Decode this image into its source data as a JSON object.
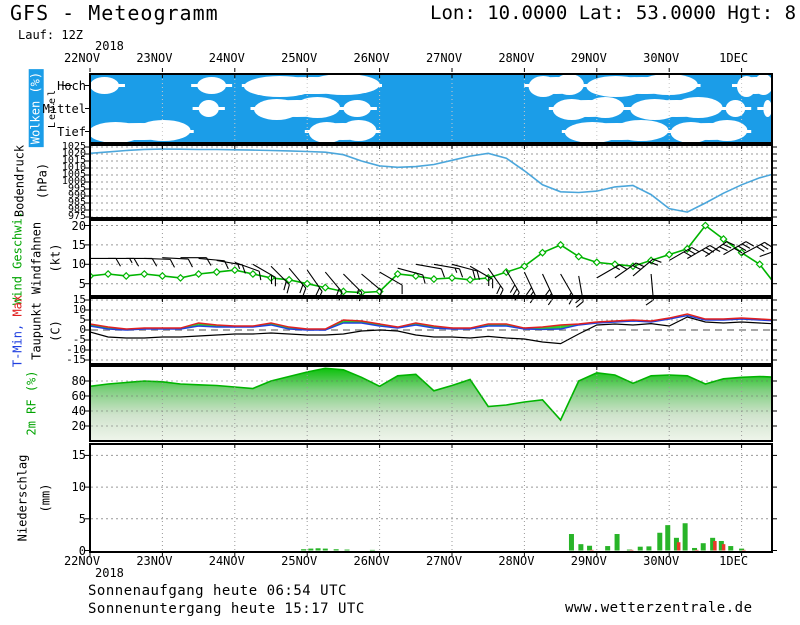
{
  "header": {
    "title": "GFS - Meteogramm",
    "coordinates": "Lon: 10.0000 Lat: 53.0000 Hgt: 8",
    "run_label": "Lauf: 12Z"
  },
  "footer": {
    "sunrise": "Sonnenaufgang heute 06:54 UTC",
    "sunset": "Sonnenuntergang heute 15:17 UTC",
    "website": "www.wetterzentrale.de"
  },
  "chart_data": {
    "type": "meteogram",
    "x_axis": {
      "year": "2018",
      "dates": [
        "22NOV",
        "23NOV",
        "24NOV",
        "25NOV",
        "26NOV",
        "27NOV",
        "28NOV",
        "29NOV",
        "30NOV",
        "1DEC"
      ],
      "step_days": 0.25,
      "days_shown": 9.42
    },
    "panels": {
      "clouds": {
        "label": "Wolken (%)",
        "axis_label": "Level",
        "rows": [
          "Hoch",
          "Mittel",
          "Tief"
        ],
        "sky_color": "#1B9DE8",
        "cloud_color": "#FFFFFF",
        "gridline_color": "#C8C8C8",
        "segments": {
          "Hoch": [
            [
              0,
              0.4
            ],
            [
              1.48,
              1.88
            ],
            [
              2.18,
              3.95
            ],
            [
              6.08,
              6.8
            ],
            [
              6.9,
              8.35
            ],
            [
              8.95,
              9.42
            ]
          ],
          "Mittel": [
            [
              1.5,
              1.78
            ],
            [
              2.3,
              3.42
            ],
            [
              3.5,
              3.88
            ],
            [
              6.42,
              7.35
            ],
            [
              7.5,
              8.7
            ],
            [
              8.78,
              9.05
            ],
            [
              9.3,
              9.42
            ]
          ],
          "Tief": [
            [
              0.02,
              1.35
            ],
            [
              3.05,
              3.93
            ],
            [
              6.6,
              7.95
            ],
            [
              8.05,
              9.05
            ]
          ]
        }
      },
      "pressure": {
        "label": "Bodendruck",
        "unit": "(hPa)",
        "line_color": "#4BA6DB",
        "ylim": [
          975,
          1025
        ],
        "yticks": [
          1025,
          1020,
          1015,
          1010,
          1005,
          1000,
          995,
          990,
          985,
          980,
          975
        ],
        "values": [
          1020.5,
          1021.5,
          1022.5,
          1023.3,
          1023.5,
          1023.4,
          1023.2,
          1023.2,
          1023.0,
          1022.8,
          1022.5,
          1022.2,
          1021.8,
          1021.3,
          1019.5,
          1015.0,
          1011.5,
          1010.5,
          1011.0,
          1012.5,
          1015.5,
          1018.5,
          1020.5,
          1017.0,
          1008.0,
          998.0,
          993.0,
          992.5,
          993.5,
          996.5,
          997.5,
          991.0,
          981.0,
          978.5,
          985.0,
          992.0,
          998.0,
          1003.0,
          1006.5
        ]
      },
      "wind": {
        "label_speed": "Wind Geschwi.",
        "label_barbs": "Windfahnen",
        "unit": "(kt)",
        "line_color": "#00B400",
        "barb_color": "#000000",
        "ylim": [
          2,
          21
        ],
        "yticks": [
          20,
          15,
          10,
          5
        ],
        "speed_kt": [
          7,
          7.5,
          7,
          7.5,
          7,
          6.5,
          7.5,
          8,
          8.5,
          7.5,
          6.5,
          6,
          5,
          4,
          3,
          2.7,
          3,
          7.5,
          7,
          6.2,
          6.5,
          6,
          6.5,
          8,
          9.5,
          13,
          15,
          12,
          10.5,
          10,
          9.5,
          11,
          12.5,
          14,
          20,
          16.5,
          13,
          10,
          4
        ],
        "barbs": [
          [
            0,
            11.5,
            0,
            1
          ],
          [
            0.25,
            11.5,
            0,
            1.5
          ],
          [
            0.5,
            11.5,
            0,
            1
          ],
          [
            0.75,
            11.5,
            -2,
            1
          ],
          [
            1,
            11.7,
            -3,
            1
          ],
          [
            1.25,
            11.7,
            0,
            1
          ],
          [
            1.5,
            11.5,
            -5,
            1
          ],
          [
            1.75,
            11,
            -10,
            1.5
          ],
          [
            2,
            10.5,
            -20,
            1
          ],
          [
            2.25,
            10,
            -30,
            2
          ],
          [
            2.5,
            9.5,
            -45,
            2
          ],
          [
            2.75,
            9,
            -50,
            2
          ],
          [
            3,
            8.5,
            -55,
            2
          ],
          [
            3.25,
            8,
            -50,
            2
          ],
          [
            3.5,
            7.5,
            -45,
            1.5
          ],
          [
            3.75,
            7.5,
            -40,
            1
          ],
          [
            4,
            8,
            -30,
            1
          ],
          [
            4.25,
            9,
            -15,
            1
          ],
          [
            4.5,
            10,
            -10,
            1
          ],
          [
            4.75,
            10,
            -10,
            1.5
          ],
          [
            5,
            10,
            -15,
            2
          ],
          [
            5.25,
            9.5,
            -30,
            2
          ],
          [
            5.5,
            9,
            -55,
            2
          ],
          [
            5.75,
            8.5,
            -60,
            3
          ],
          [
            6,
            8,
            -65,
            3
          ],
          [
            6.25,
            7.5,
            -65,
            3
          ],
          [
            6.5,
            7.5,
            -60,
            2
          ],
          [
            6.75,
            7,
            -80,
            2
          ],
          [
            7,
            6.5,
            30,
            1.5
          ],
          [
            7.25,
            6.5,
            35,
            2
          ],
          [
            7.5,
            7,
            40,
            2
          ],
          [
            7.75,
            7.5,
            -85,
            2
          ],
          [
            8,
            11,
            30,
            3
          ],
          [
            8.25,
            11.5,
            30,
            3
          ],
          [
            8.5,
            12,
            35,
            3.5
          ],
          [
            8.75,
            12.5,
            30,
            4
          ],
          [
            9,
            12.5,
            28,
            3
          ],
          [
            9.25,
            12,
            20,
            3
          ]
        ]
      },
      "temperature": {
        "label_tmin": "T-Min,",
        "label_tmax": "Max",
        "label_dew": "Taupunkt",
        "unit": "(C)",
        "ylim": [
          -17,
          16
        ],
        "yticks": [
          15,
          10,
          5,
          0,
          -5,
          -10,
          -15
        ],
        "tmax_color": "#E02020",
        "tmin_color": "#2040E0",
        "dew_color": "#000000",
        "band_green": "#2ECC2E",
        "band_gold": "#F2CE26",
        "band_switch_day": 6.75,
        "tmax_c": [
          3,
          1.5,
          0.5,
          1,
          1,
          1,
          3.5,
          2.5,
          2,
          2,
          3.5,
          1.5,
          0.5,
          0.5,
          5,
          4.5,
          3,
          1.5,
          3.5,
          2,
          1,
          1,
          3,
          3,
          1,
          1.5,
          2.5,
          3,
          4,
          4.5,
          5,
          4.5,
          6,
          8,
          5.5,
          5.5,
          6,
          5.5,
          5
        ],
        "tmin_c": [
          2,
          0.5,
          0,
          0.5,
          0.5,
          0.5,
          2,
          1.5,
          1.5,
          1.5,
          2.5,
          0.5,
          0,
          0,
          3.5,
          3.5,
          2,
          1,
          2.5,
          1,
          0.5,
          0.5,
          2,
          2,
          0.5,
          0.3,
          0.5,
          2.5,
          3.5,
          4,
          4.5,
          4,
          5.5,
          7.2,
          5,
          5,
          5.5,
          5,
          4.5
        ],
        "dewpoint_c": [
          -1,
          -3.5,
          -4,
          -4,
          -3.5,
          -3.5,
          -3,
          -2.5,
          -2,
          -2,
          -1.5,
          -2,
          -2.5,
          -2.5,
          -2,
          -0.5,
          0,
          -0.5,
          -2.5,
          -3.5,
          -3.5,
          -4,
          -3.2,
          -4,
          -4.5,
          -6,
          -6.8,
          -2,
          2.5,
          3,
          2.5,
          3.2,
          2,
          6.5,
          4,
          3.5,
          4,
          3.5,
          3
        ]
      },
      "humidity": {
        "label": "2m RF (%)",
        "line_color": "#00B400",
        "gradient_top": "#00C000",
        "gradient_bottom": "#EFF5EB",
        "ylim": [
          0,
          100
        ],
        "yticks": [
          80,
          60,
          40,
          20
        ],
        "values_pct": [
          73,
          76,
          78,
          80,
          79,
          76,
          75,
          74,
          72,
          70,
          80,
          86,
          92,
          97,
          95,
          85,
          73,
          87,
          89,
          67,
          74,
          82,
          46,
          48,
          52,
          55,
          28,
          80,
          91,
          88,
          77,
          87,
          88,
          87,
          76,
          83,
          85,
          86,
          85
        ]
      },
      "precipitation": {
        "label": "Niederschlag",
        "unit": "(mm)",
        "rain_color": "#28B428",
        "mixed_color": "#E83828",
        "ylim": [
          0,
          16.8
        ],
        "yticks": [
          15,
          10,
          5,
          0
        ],
        "bars": [
          [
            2.95,
            0.2,
            0
          ],
          [
            3.05,
            0.3,
            0
          ],
          [
            3.15,
            0.35,
            0
          ],
          [
            3.25,
            0.3,
            0
          ],
          [
            3.4,
            0.2,
            0
          ],
          [
            3.55,
            0.15,
            0
          ],
          [
            3.9,
            0.1,
            0
          ],
          [
            6.65,
            2.6,
            0
          ],
          [
            6.78,
            1.0,
            0
          ],
          [
            6.9,
            0.75,
            0.1
          ],
          [
            7.15,
            0.7,
            0
          ],
          [
            7.28,
            2.6,
            0
          ],
          [
            7.45,
            0.15,
            0.1
          ],
          [
            7.6,
            0.6,
            0
          ],
          [
            7.72,
            0.65,
            0
          ],
          [
            7.87,
            2.8,
            0
          ],
          [
            7.98,
            4.0,
            0
          ],
          [
            8.1,
            2.0,
            1.3
          ],
          [
            8.22,
            4.3,
            0
          ],
          [
            8.35,
            0.4,
            0.1
          ],
          [
            8.47,
            1.15,
            0
          ],
          [
            8.6,
            2.0,
            1.5
          ],
          [
            8.72,
            1.5,
            1.0
          ],
          [
            8.85,
            0.7,
            0
          ],
          [
            9.0,
            0.3,
            0.1
          ]
        ]
      }
    }
  }
}
